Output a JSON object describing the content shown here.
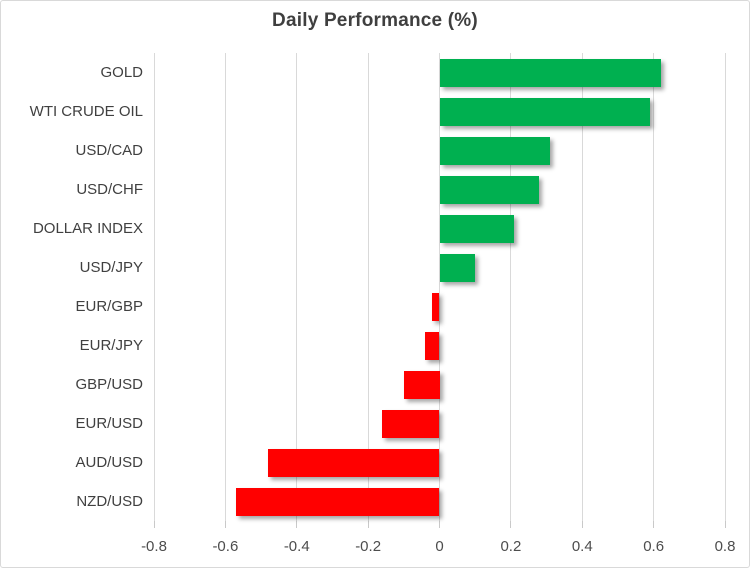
{
  "chart_data": {
    "type": "bar",
    "orientation": "horizontal",
    "title": "Daily Performance (%)",
    "categories": [
      "GOLD",
      "WTI CRUDE OIL",
      "USD/CAD",
      "USD/CHF",
      "DOLLAR INDEX",
      "USD/JPY",
      "EUR/GBP",
      "EUR/JPY",
      "GBP/USD",
      "EUR/USD",
      "AUD/USD",
      "NZD/USD"
    ],
    "values": [
      0.62,
      0.59,
      0.31,
      0.28,
      0.21,
      0.1,
      -0.02,
      -0.04,
      -0.1,
      -0.16,
      -0.48,
      -0.57
    ],
    "xlabel": "",
    "ylabel": "",
    "xlim": [
      -0.8,
      0.8
    ],
    "xticks": [
      -0.8,
      -0.6,
      -0.4,
      -0.2,
      0,
      0.2,
      0.4,
      0.6,
      0.8
    ],
    "xtick_labels": [
      "-0.8",
      "-0.6",
      "-0.4",
      "-0.2",
      "0",
      "0.2",
      "0.4",
      "0.6",
      "0.8"
    ],
    "grid": true,
    "legend": false,
    "colors": {
      "positive": "#00B050",
      "negative": "#FF0000"
    }
  },
  "styles": {
    "gridline_color": "#D9D9D9",
    "tick_color": "#C9C9C9",
    "label_color": "#404040",
    "title_color": "#3F3F3F",
    "frame_border_color": "#D9D9D9",
    "background": "#FFFFFF"
  }
}
